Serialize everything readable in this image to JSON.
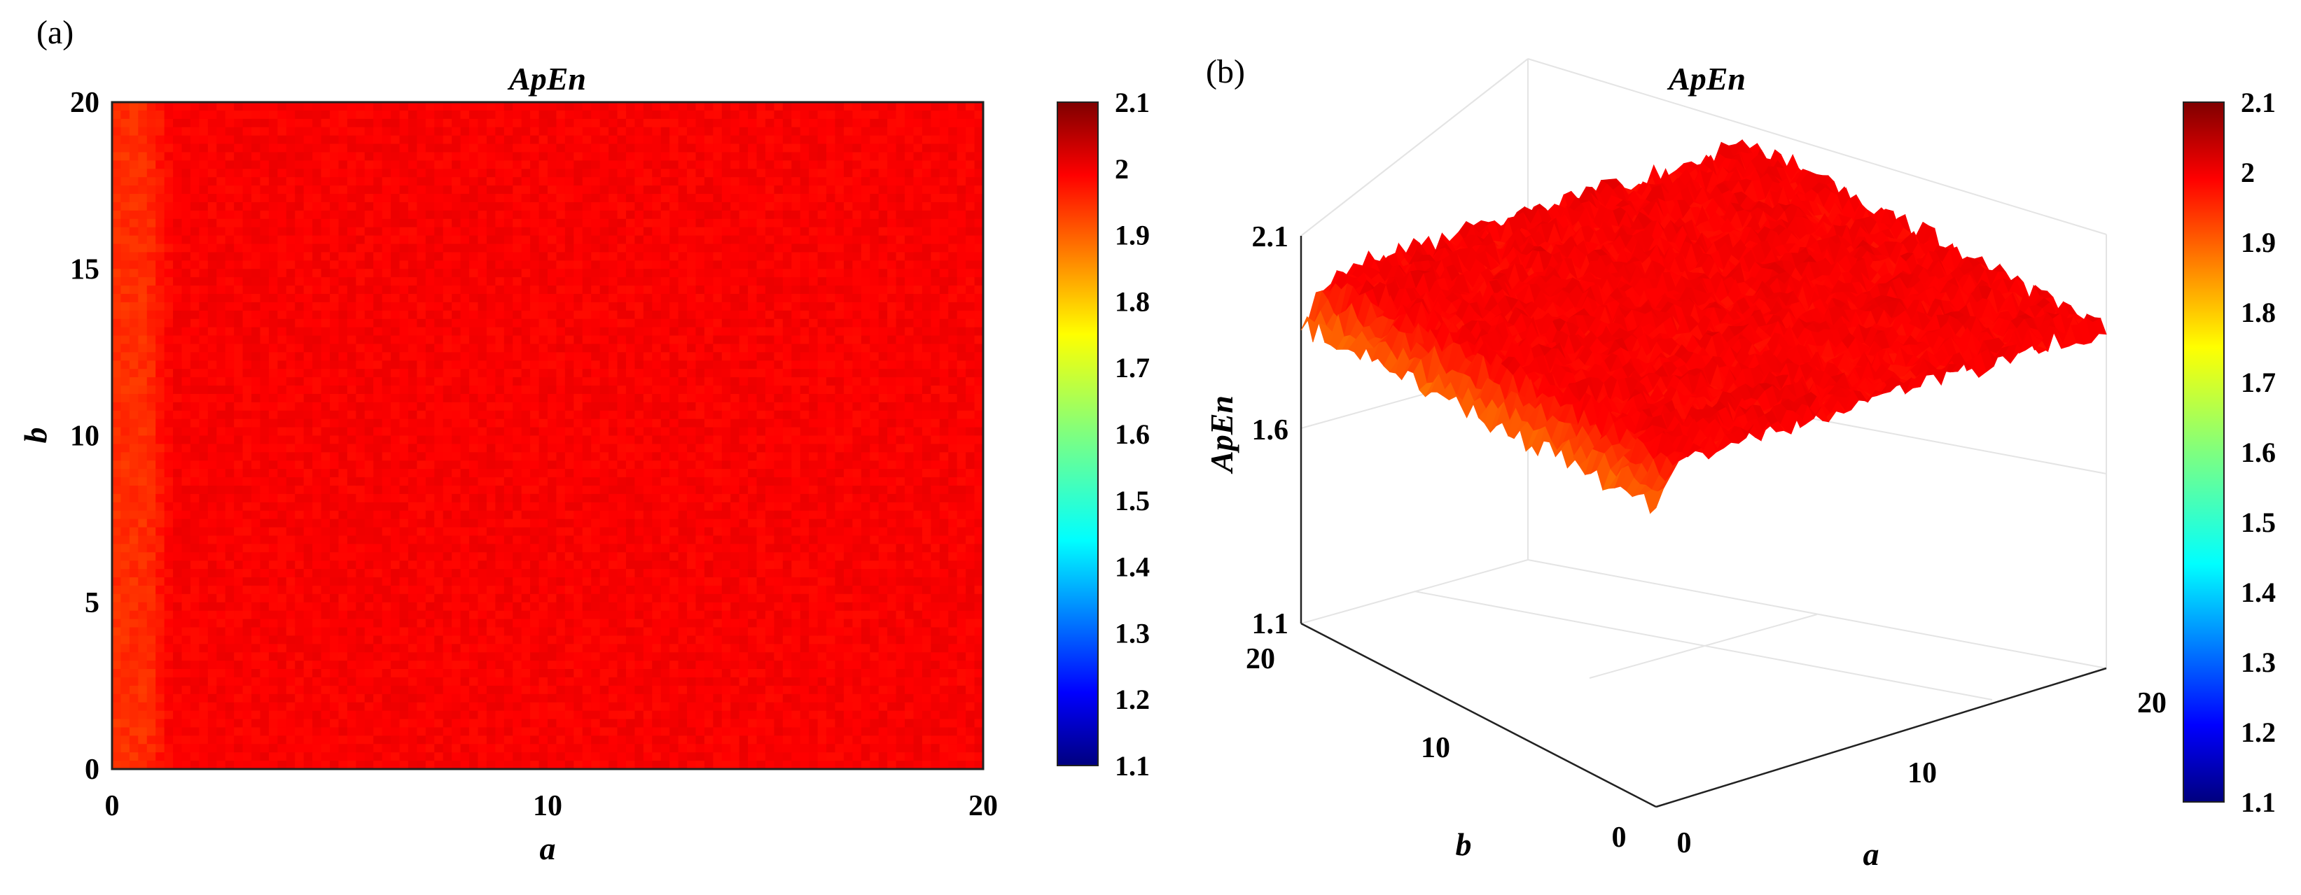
{
  "panels": {
    "a_label": "(a)",
    "b_label": "(b)"
  },
  "chart_data": [
    {
      "type": "heatmap",
      "panel": "(a)",
      "title": "ApEn",
      "xlabel": "a",
      "ylabel": "b",
      "xlim": [
        0,
        20
      ],
      "ylim": [
        0,
        20
      ],
      "xticks": [
        "0",
        "10",
        "20"
      ],
      "yticks": [
        "0",
        "5",
        "10",
        "15",
        "20"
      ],
      "field": {
        "description_of_values": "ApEn value across parameters a and b",
        "edge_strip_a_range": [
          0,
          0.8
        ],
        "edge_strip_value": 1.93,
        "transition_a_range": [
          0.8,
          1.4
        ],
        "bulk_value": 1.98,
        "noise_amplitude": 0.015
      },
      "colorbar": {
        "min": 1.1,
        "max": 2.1,
        "ticks": [
          "1.1",
          "1.2",
          "1.3",
          "1.4",
          "1.5",
          "1.6",
          "1.7",
          "1.8",
          "1.9",
          "2",
          "2.1"
        ],
        "colormap": "jet"
      }
    },
    {
      "type": "surface",
      "panel": "(b)",
      "title": "ApEn",
      "xlabel": "a",
      "ylabel": "b",
      "zlabel": "ApEn",
      "xlim": [
        0,
        20
      ],
      "ylim": [
        0,
        20
      ],
      "zlim": [
        1.1,
        2.1
      ],
      "xticks": [
        "0",
        "10",
        "20"
      ],
      "yticks": [
        "0",
        "10",
        "20"
      ],
      "zticks": [
        "1.1",
        "1.6",
        "2.1"
      ],
      "field": {
        "edge_value_at_a0": 1.87,
        "bulk_value": 1.98,
        "noise_amplitude": 0.03
      },
      "colorbar": {
        "min": 1.1,
        "max": 2.1,
        "ticks": [
          "1.1",
          "1.2",
          "1.3",
          "1.4",
          "1.5",
          "1.6",
          "1.7",
          "1.8",
          "1.9",
          "2",
          "2.1"
        ],
        "colormap": "jet"
      }
    }
  ]
}
